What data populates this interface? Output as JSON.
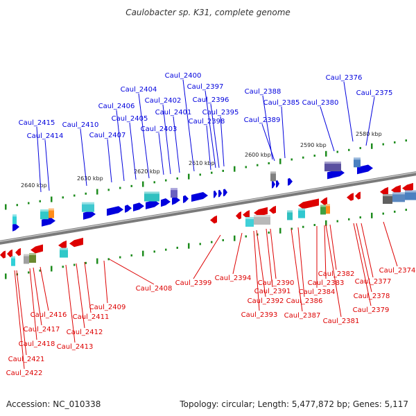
{
  "title": "Caulobacter sp. K31, complete genome",
  "footer": {
    "accession": "Accession: NC_010338",
    "topology": "Topology: circular; Length: 5,477,872 bp; Genes: 5,117"
  },
  "colors": {
    "forward": "#0000dd",
    "reverse": "#dd0000",
    "ruler": "#1e8c1e",
    "backbone": "#7a7a7a"
  },
  "ruler_labels": [
    "2580 kbp",
    "2590 kbp",
    "2600 kbp",
    "2610 kbp",
    "2620 kbp",
    "2630 kbp",
    "2640 kbp"
  ],
  "forward_genes": [
    "Caul_2375",
    "Caul_2376",
    "Caul_2380",
    "Caul_2385",
    "Caul_2388",
    "Caul_2389",
    "Caul_2395",
    "Caul_2396",
    "Caul_2397",
    "Caul_2398",
    "Caul_2400",
    "Caul_2401",
    "Caul_2402",
    "Caul_2403",
    "Caul_2404",
    "Caul_2405",
    "Caul_2406",
    "Caul_2407",
    "Caul_2410",
    "Caul_2414",
    "Caul_2415"
  ],
  "reverse_genes": [
    "Caul_2374",
    "Caul_2377",
    "Caul_2378",
    "Caul_2379",
    "Caul_2381",
    "Caul_2382",
    "Caul_2383",
    "Caul_2384",
    "Caul_2386",
    "Caul_2387",
    "Caul_2390",
    "Caul_2391",
    "Caul_2392",
    "Caul_2393",
    "Caul_2394",
    "Caul_2399",
    "Caul_2408",
    "Caul_2409",
    "Caul_2411",
    "Caul_2412",
    "Caul_2413",
    "Caul_2416",
    "Caul_2417",
    "Caul_2418",
    "Caul_2421",
    "Caul_2422"
  ]
}
